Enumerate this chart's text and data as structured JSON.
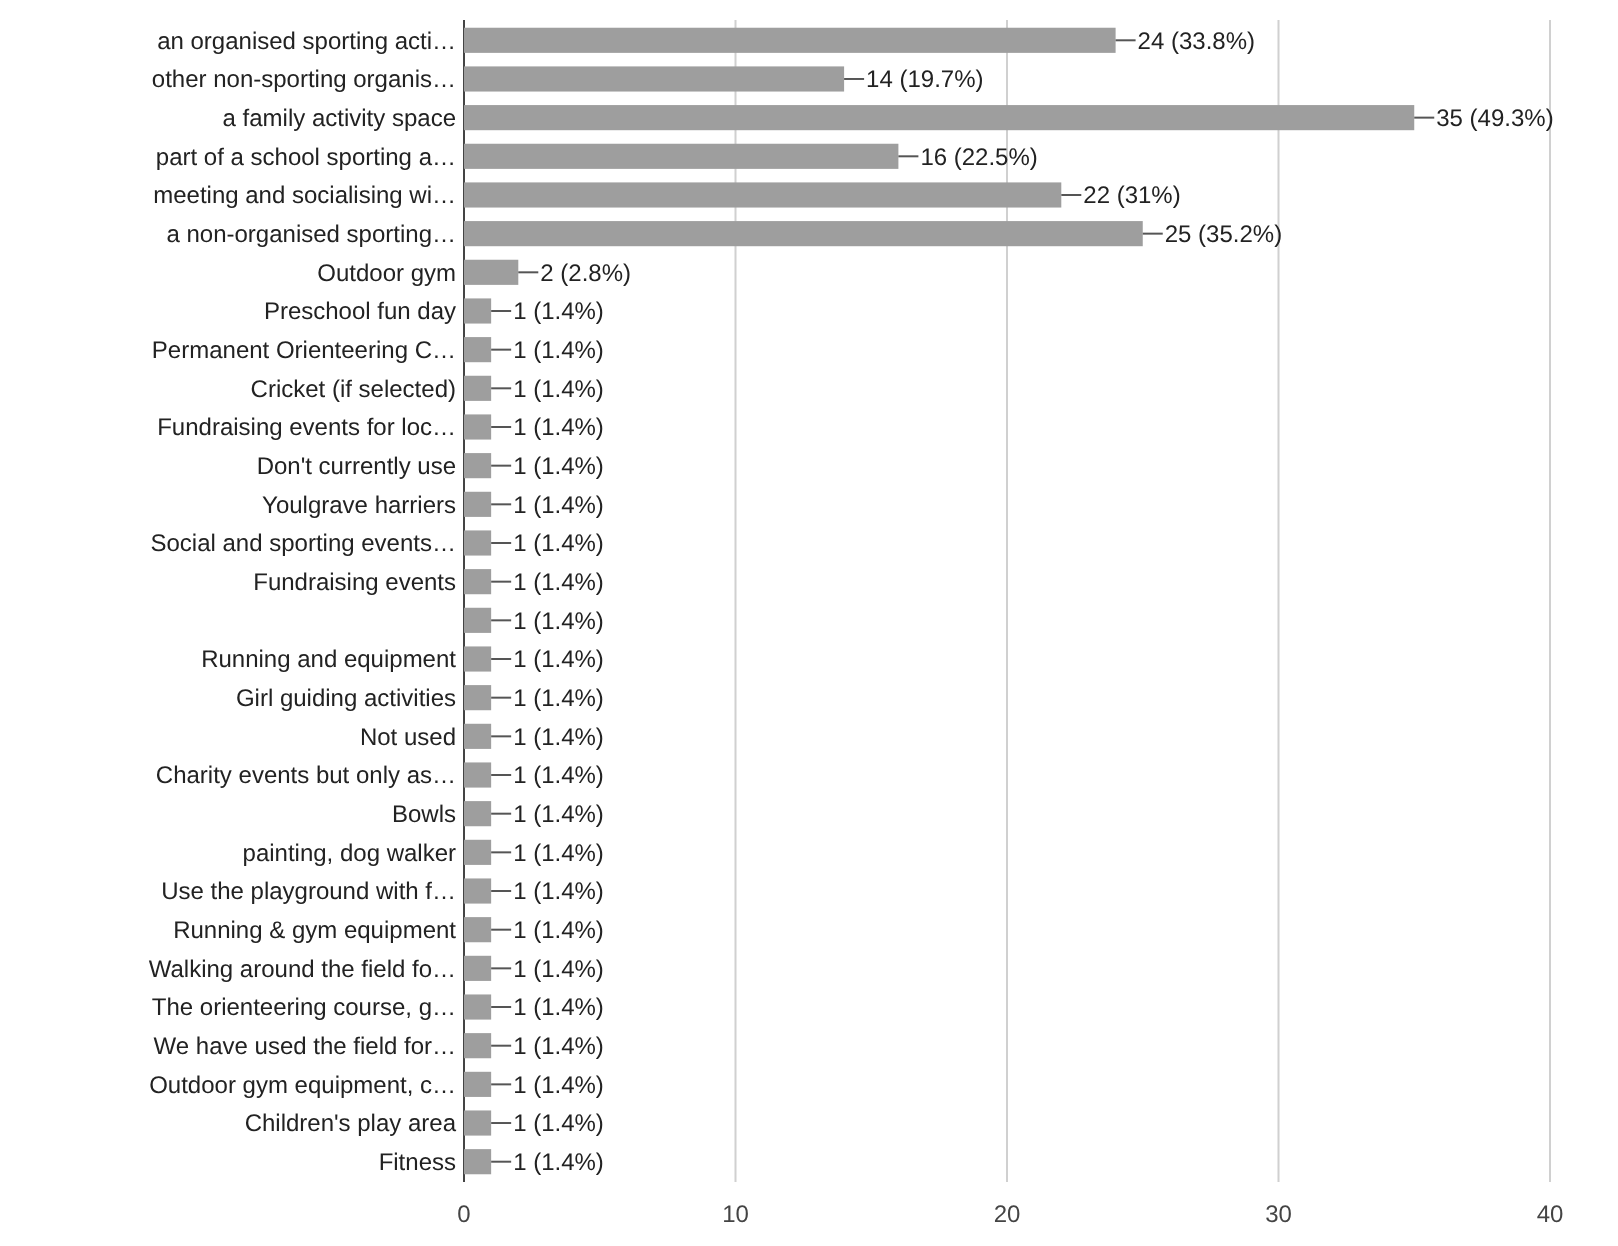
{
  "chart_data": {
    "type": "bar",
    "orientation": "horizontal",
    "categories": [
      "an organised sporting acti…",
      "other non-sporting organis…",
      "a family activity space",
      "part of a school sporting a…",
      "meeting and socialising wi…",
      "a non-organised sporting…",
      "Outdoor gym",
      "Preschool fun day",
      "Permanent Orienteering C…",
      "Cricket (if selected)",
      "Fundraising events for loc…",
      "Don't currently use",
      "Youlgrave harriers",
      "Social and sporting events…",
      "Fundraising events",
      null,
      "Running and equipment",
      "Girl guiding activities",
      "Not used",
      "Charity events but only as…",
      "Bowls",
      "painting, dog walker",
      "Use the playground with f…",
      "Running & gym equipment",
      "Walking around the field fo…",
      "The orienteering course, g…",
      "We have used the field for…",
      "Outdoor gym equipment, c…",
      "Children's play area",
      "Fitness"
    ],
    "values": [
      24,
      14,
      35,
      16,
      22,
      25,
      2,
      1,
      1,
      1,
      1,
      1,
      1,
      1,
      1,
      1,
      1,
      1,
      1,
      1,
      1,
      1,
      1,
      1,
      1,
      1,
      1,
      1,
      1,
      1
    ],
    "value_labels": [
      "24 (33.8%)",
      "14 (19.7%)",
      "35 (49.3%)",
      "16 (22.5%)",
      "22 (31%)",
      "25 (35.2%)",
      "2 (2.8%)",
      "1 (1.4%)",
      "1 (1.4%)",
      "1 (1.4%)",
      "1 (1.4%)",
      "1 (1.4%)",
      "1 (1.4%)",
      "1 (1.4%)",
      "1 (1.4%)",
      "1 (1.4%)",
      "1 (1.4%)",
      "1 (1.4%)",
      "1 (1.4%)",
      "1 (1.4%)",
      "1 (1.4%)",
      "1 (1.4%)",
      "1 (1.4%)",
      "1 (1.4%)",
      "1 (1.4%)",
      "1 (1.4%)",
      "1 (1.4%)",
      "1 (1.4%)",
      "1 (1.4%)",
      "1 (1.4%)"
    ],
    "color": "#9e9e9e",
    "xlim": [
      0,
      40
    ],
    "xticks": [
      0,
      10,
      20,
      30,
      40
    ],
    "grid": "x"
  }
}
